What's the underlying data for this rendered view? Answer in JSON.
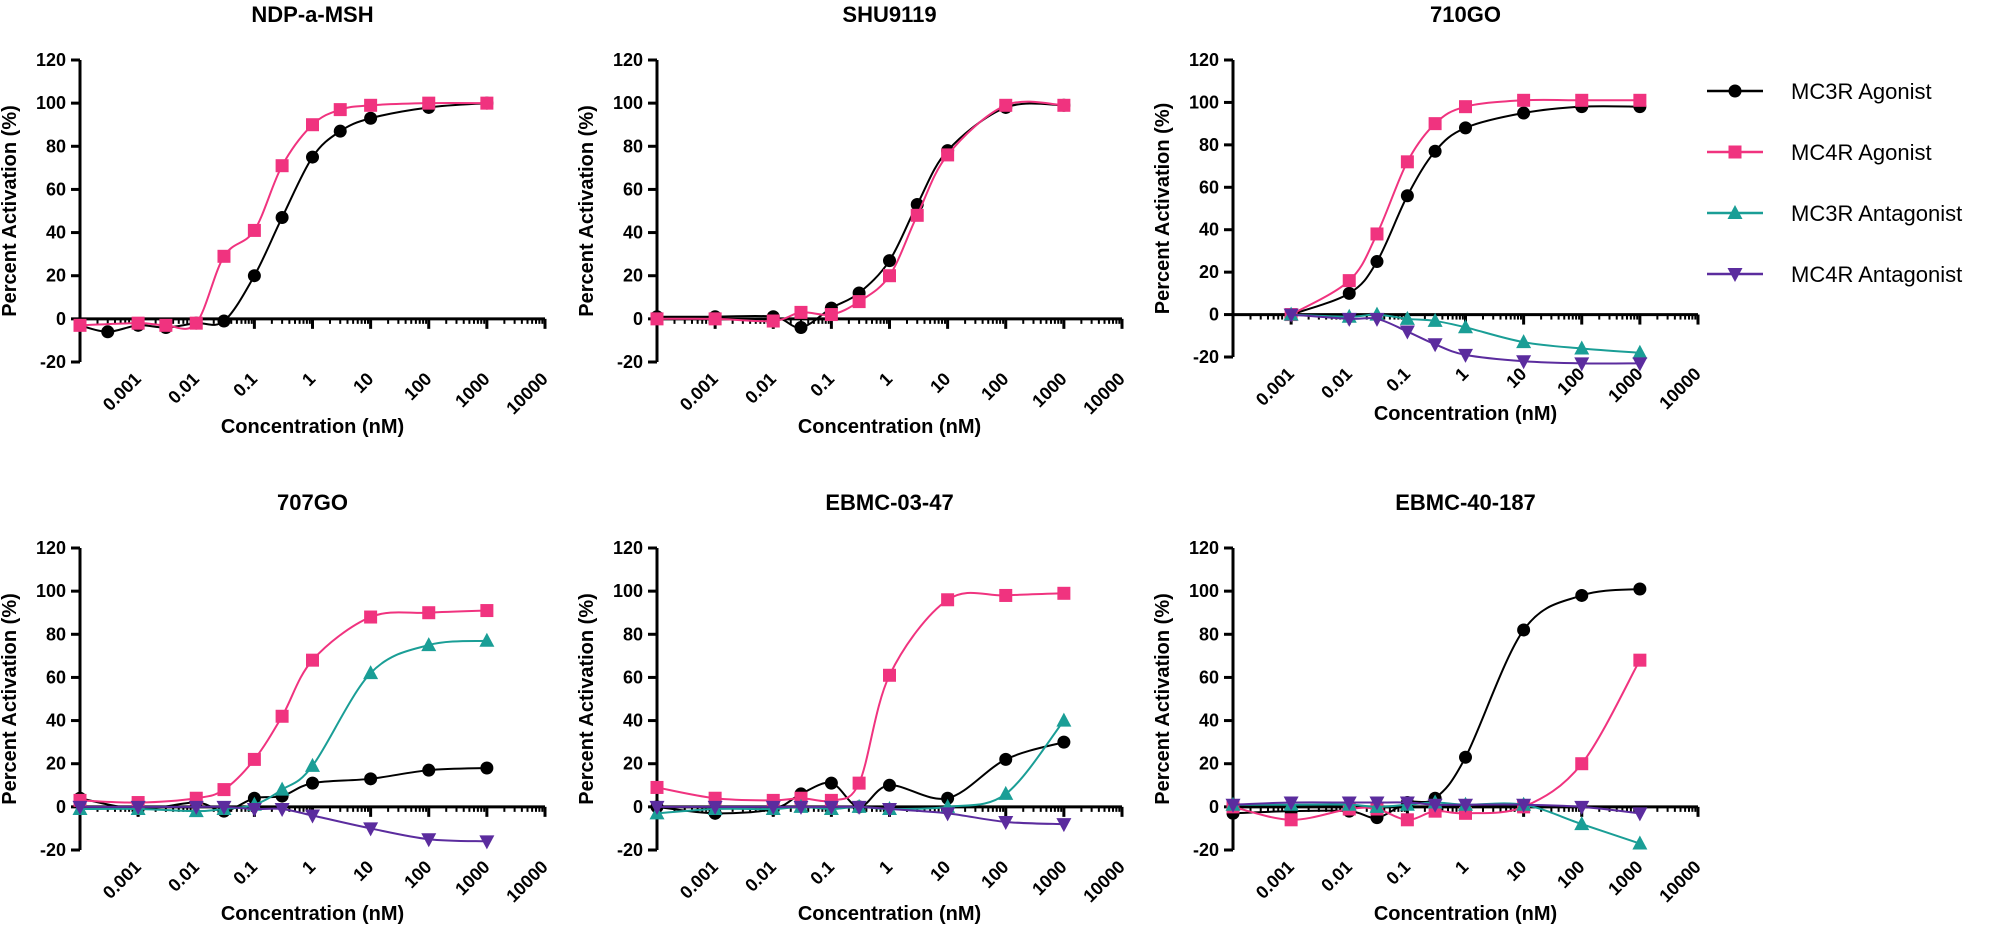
{
  "legend": [
    {
      "name": "MC3R Agonist",
      "color": "#000000",
      "marker": "circle"
    },
    {
      "name": "MC4R Agonist",
      "color": "#f0337f",
      "marker": "square"
    },
    {
      "name": "MC3R Antagonist",
      "color": "#1a9e96",
      "marker": "triangle-up"
    },
    {
      "name": "MC4R Antagonist",
      "color": "#5b2c9e",
      "marker": "triangle-down"
    }
  ],
  "chart_data": [
    {
      "type": "line",
      "title": "NDP-a-MSH",
      "xlabel": "Concentration (nM)",
      "ylabel": "Percent Activation (%)",
      "xscale": "log",
      "xlim": [
        0.0001,
        10000
      ],
      "ylim": [
        -20,
        120
      ],
      "xticks": [
        "0.001",
        "0.01",
        "0.1",
        "1",
        "10",
        "100",
        "1000",
        "10000"
      ],
      "yticks": [
        "-20",
        "0",
        "20",
        "40",
        "60",
        "80",
        "100",
        "120"
      ],
      "series": [
        {
          "name": "MC3R Agonist",
          "x": [
            0.0001,
            0.0003,
            0.001,
            0.003,
            0.01,
            0.03,
            0.1,
            0.3,
            1,
            3,
            10,
            100,
            1000
          ],
          "y": [
            -3,
            -6,
            -3,
            -4,
            -2,
            -1,
            20,
            47,
            75,
            87,
            93,
            98,
            100
          ]
        },
        {
          "name": "MC4R Agonist",
          "x": [
            0.0001,
            0.001,
            0.003,
            0.01,
            0.03,
            0.1,
            0.3,
            1,
            3,
            10,
            100,
            1000
          ],
          "y": [
            -3,
            -2,
            -3,
            -2,
            29,
            41,
            71,
            90,
            97,
            99,
            100,
            100
          ]
        }
      ]
    },
    {
      "type": "line",
      "title": "SHU9119",
      "xlabel": "Concentration (nM)",
      "ylabel": "Percent Activation (%)",
      "xscale": "log",
      "xlim": [
        0.0001,
        10000
      ],
      "ylim": [
        -20,
        120
      ],
      "xticks": [
        "0.001",
        "0.01",
        "0.1",
        "1",
        "10",
        "100",
        "1000",
        "10000"
      ],
      "yticks": [
        "-20",
        "0",
        "20",
        "40",
        "60",
        "80",
        "100",
        "120"
      ],
      "series": [
        {
          "name": "MC3R Agonist",
          "x": [
            0.0001,
            0.001,
            0.01,
            0.03,
            0.1,
            0.3,
            1,
            3,
            10,
            100,
            1000
          ],
          "y": [
            1,
            1,
            1,
            -4,
            5,
            12,
            27,
            53,
            78,
            98,
            99
          ]
        },
        {
          "name": "MC4R Agonist",
          "x": [
            0.0001,
            0.001,
            0.01,
            0.03,
            0.1,
            0.3,
            1,
            3,
            10,
            100,
            1000
          ],
          "y": [
            0,
            0,
            -1,
            3,
            2,
            8,
            20,
            48,
            76,
            99,
            99
          ]
        }
      ]
    },
    {
      "type": "line",
      "title": "710GO",
      "xlabel": "Concentration (nM)",
      "ylabel": "Percent Activation (%)",
      "xscale": "log",
      "xlim": [
        0.0001,
        10000
      ],
      "ylim": [
        -20,
        120
      ],
      "xticks": [
        "0.001",
        "0.01",
        "0.1",
        "1",
        "10",
        "100",
        "1000",
        "10000"
      ],
      "yticks": [
        "-20",
        "0",
        "20",
        "40",
        "60",
        "80",
        "100",
        "120"
      ],
      "series": [
        {
          "name": "MC3R Agonist",
          "x": [
            0.001,
            0.01,
            0.03,
            0.1,
            0.3,
            1,
            10,
            100,
            1000
          ],
          "y": [
            0,
            10,
            25,
            56,
            77,
            88,
            95,
            98,
            98
          ]
        },
        {
          "name": "MC4R Agonist",
          "x": [
            0.001,
            0.01,
            0.03,
            0.1,
            0.3,
            1,
            10,
            100,
            1000
          ],
          "y": [
            0,
            16,
            38,
            72,
            90,
            98,
            101,
            101,
            101
          ]
        },
        {
          "name": "MC3R Antagonist",
          "x": [
            0.001,
            0.01,
            0.03,
            0.1,
            0.3,
            1,
            10,
            100,
            1000
          ],
          "y": [
            0,
            -1,
            0,
            -2,
            -3,
            -6,
            -13,
            -16,
            -18
          ]
        },
        {
          "name": "MC4R Antagonist",
          "x": [
            0.001,
            0.01,
            0.03,
            0.1,
            0.3,
            1,
            10,
            100,
            1000
          ],
          "y": [
            0,
            -2,
            -2,
            -8,
            -14,
            -19,
            -22,
            -23,
            -23
          ]
        }
      ]
    },
    {
      "type": "line",
      "title": "707GO",
      "xlabel": "Concentration (nM)",
      "ylabel": "Percent Activation (%)",
      "xscale": "log",
      "xlim": [
        0.0001,
        10000
      ],
      "ylim": [
        -20,
        120
      ],
      "xticks": [
        "0.001",
        "0.01",
        "0.1",
        "1",
        "10",
        "100",
        "1000",
        "10000"
      ],
      "yticks": [
        "-20",
        "0",
        "20",
        "40",
        "60",
        "80",
        "100",
        "120"
      ],
      "series": [
        {
          "name": "MC3R Agonist",
          "x": [
            0.0001,
            0.001,
            0.01,
            0.03,
            0.1,
            0.3,
            1,
            10,
            100,
            1000
          ],
          "y": [
            4,
            -1,
            2,
            -2,
            4,
            5,
            11,
            13,
            17,
            18
          ]
        },
        {
          "name": "MC4R Agonist",
          "x": [
            0.0001,
            0.001,
            0.01,
            0.03,
            0.1,
            0.3,
            1,
            10,
            100,
            1000
          ],
          "y": [
            3,
            2,
            4,
            8,
            22,
            42,
            68,
            88,
            90,
            91
          ]
        },
        {
          "name": "MC3R Antagonist",
          "x": [
            0.0001,
            0.001,
            0.01,
            0.03,
            0.1,
            0.3,
            1,
            10,
            100,
            1000
          ],
          "y": [
            -1,
            -1,
            -2,
            -1,
            1,
            8,
            19,
            62,
            75,
            77
          ]
        },
        {
          "name": "MC4R Antagonist",
          "x": [
            0.0001,
            0.001,
            0.01,
            0.03,
            0.1,
            0.3,
            1,
            10,
            100,
            1000
          ],
          "y": [
            0,
            0,
            0,
            0,
            -1,
            -1,
            -4,
            -10,
            -15,
            -16
          ]
        }
      ]
    },
    {
      "type": "line",
      "title": "EBMC-03-47",
      "xlabel": "Concentration (nM)",
      "ylabel": "Percent Activation (%)",
      "xscale": "log",
      "xlim": [
        0.0001,
        10000
      ],
      "ylim": [
        -20,
        120
      ],
      "xticks": [
        "0.001",
        "0.01",
        "0.1",
        "1",
        "10",
        "100",
        "1000",
        "10000"
      ],
      "yticks": [
        "-20",
        "0",
        "20",
        "40",
        "60",
        "80",
        "100",
        "120"
      ],
      "series": [
        {
          "name": "MC3R Agonist",
          "x": [
            0.0001,
            0.001,
            0.01,
            0.03,
            0.1,
            0.3,
            1,
            10,
            100,
            1000
          ],
          "y": [
            0,
            -3,
            -1,
            6,
            11,
            0,
            10,
            4,
            22,
            30
          ]
        },
        {
          "name": "MC4R Agonist",
          "x": [
            0.0001,
            0.001,
            0.01,
            0.03,
            0.1,
            0.3,
            1,
            10,
            100,
            1000
          ],
          "y": [
            9,
            4,
            3,
            4,
            3,
            11,
            61,
            96,
            98,
            99
          ]
        },
        {
          "name": "MC3R Antagonist",
          "x": [
            0.0001,
            0.001,
            0.01,
            0.03,
            0.1,
            0.3,
            1,
            10,
            100,
            1000
          ],
          "y": [
            -3,
            -1,
            -1,
            0,
            -1,
            0,
            -1,
            0,
            6,
            40
          ]
        },
        {
          "name": "MC4R Antagonist",
          "x": [
            0.0001,
            0.001,
            0.01,
            0.03,
            0.1,
            0.3,
            1,
            10,
            100,
            1000
          ],
          "y": [
            0,
            0,
            0,
            0,
            0,
            0,
            -1,
            -3,
            -7,
            -8
          ]
        }
      ]
    },
    {
      "type": "line",
      "title": "EBMC-40-187",
      "xlabel": "Concentration (nM)",
      "ylabel": "Percent Activation (%)",
      "xscale": "log",
      "xlim": [
        0.0001,
        10000
      ],
      "ylim": [
        -20,
        120
      ],
      "xticks": [
        "0.001",
        "0.01",
        "0.1",
        "1",
        "10",
        "100",
        "1000",
        "10000"
      ],
      "yticks": [
        "-20",
        "0",
        "20",
        "40",
        "60",
        "80",
        "100",
        "120"
      ],
      "series": [
        {
          "name": "MC3R Agonist",
          "x": [
            0.0001,
            0.001,
            0.01,
            0.03,
            0.1,
            0.3,
            1,
            10,
            100,
            1000
          ],
          "y": [
            -3,
            -2,
            -2,
            -5,
            2,
            4,
            23,
            82,
            98,
            101
          ]
        },
        {
          "name": "MC4R Agonist",
          "x": [
            0.0001,
            0.001,
            0.01,
            0.03,
            0.1,
            0.3,
            1,
            10,
            100,
            1000
          ],
          "y": [
            0,
            -6,
            -1,
            -1,
            -6,
            -2,
            -3,
            0,
            20,
            68
          ]
        },
        {
          "name": "MC3R Antagonist",
          "x": [
            0.0001,
            0.001,
            0.01,
            0.03,
            0.1,
            0.3,
            1,
            10,
            100,
            1000
          ],
          "y": [
            1,
            1,
            1,
            0,
            1,
            2,
            1,
            1,
            -8,
            -17
          ]
        },
        {
          "name": "MC4R Antagonist",
          "x": [
            0.0001,
            0.001,
            0.01,
            0.03,
            0.1,
            0.3,
            1,
            10,
            100,
            1000
          ],
          "y": [
            1,
            2,
            2,
            2,
            2,
            1,
            1,
            1,
            0,
            -3
          ]
        }
      ]
    }
  ]
}
